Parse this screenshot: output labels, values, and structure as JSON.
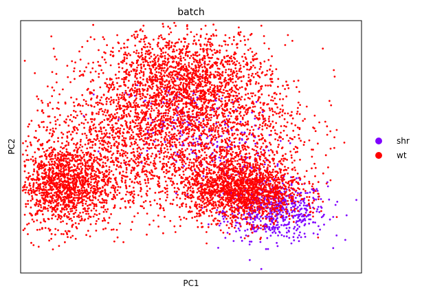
{
  "chart_data": {
    "type": "scatter",
    "title": "batch",
    "xlabel": "PC1",
    "ylabel": "PC2",
    "grid": false,
    "ticks_shown": false,
    "legend": {
      "placement": "right",
      "entries": [
        {
          "name": "shr",
          "color": "#7f00ff"
        },
        {
          "name": "wt",
          "color": "#ff0000"
        }
      ]
    },
    "xlim": [
      -10,
      30
    ],
    "ylim": [
      -15,
      20
    ],
    "series": [
      {
        "name": "shr",
        "color": "#7f00ff",
        "clusters": [
          {
            "center": [
              20,
              -6.5
            ],
            "spread": [
              3.0,
              2.0
            ],
            "count": 600
          },
          {
            "center": [
              9,
              6
            ],
            "spread": [
              4.0,
              3.5
            ],
            "count": 180
          },
          {
            "center": [
              15,
              0
            ],
            "spread": [
              3.0,
              3.0
            ],
            "count": 120
          }
        ]
      },
      {
        "name": "wt",
        "color": "#ff0000",
        "clusters": [
          {
            "center": [
              -5,
              -3
            ],
            "spread": [
              2.8,
              2.8
            ],
            "count": 1300
          },
          {
            "center": [
              16,
              -3.5
            ],
            "spread": [
              3.5,
              2.2
            ],
            "count": 1700
          },
          {
            "center": [
              9,
              12
            ],
            "spread": [
              5.0,
              3.5
            ],
            "count": 1600
          },
          {
            "center": [
              3,
              3
            ],
            "spread": [
              6.0,
              5.0
            ],
            "count": 1600
          },
          {
            "center": [
              14,
              5
            ],
            "spread": [
              5.0,
              4.5
            ],
            "count": 900
          }
        ]
      }
    ]
  }
}
